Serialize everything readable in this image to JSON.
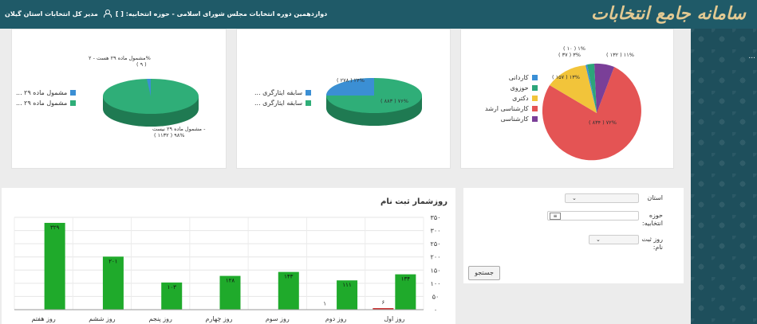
{
  "header": {
    "logo": "سامانه جامع انتخابات",
    "info_text": "دوازدهمین دوره انتخابات مجلس شورای اسلامی - حوزه انتخابیه: [ ]",
    "user_text": "مدیر کل انتخابات استان گیلان",
    "bg_color": "#1f5a68"
  },
  "sidebar": {
    "mark": "..."
  },
  "pie_education": {
    "legend": [
      "کاردانی",
      "حوزوی",
      "دکتری",
      "کارشناسی ارشد",
      "کارشناسی"
    ],
    "labels": {
      "l1": "( ۱۰ ) ۱%",
      "l2": "( ۳۷ ) ۳%",
      "l3": "( ۱۵۷ ) ۱۳%",
      "l4": "( ۱۳۲ ) ۱۱%",
      "l5": "( ۸۳۴ ) ۷۲%"
    }
  },
  "pie_experience": {
    "legend": [
      "سابقه ایثارگری ...",
      "سابقه ایثارگری ..."
    ],
    "labels": {
      "a": "( ۲۷۸ ) ۲۴%",
      "b": "( ۸۸۳ ) ۷۶%"
    }
  },
  "pie_article29": {
    "legend": [
      "مشمول ماده ۲۹ ...",
      "مشمول ماده ۲۹ ..."
    ],
    "label_top_1": "مشمول ماده ۲۹ هست - ۲%",
    "label_top_2": "( ۹ )",
    "label_bottom_1": "مشمول ماده ۲۹ نیست -",
    "label_bottom_2": "( ۱۱۳۲ ) ۹۸%"
  },
  "filters": {
    "province_label": "استان",
    "district_label": "حوزه انتخابیه:",
    "day_label": "روز ثبت نام:",
    "search_button": "جستجو"
  },
  "bar_section": {
    "title": "روزشمار ثبت نام"
  },
  "chart_data": {
    "type": "bar",
    "title": "روزشمار ثبت نام",
    "categories": [
      "روز اول",
      "روز دوم",
      "روز سوم",
      "روز چهارم",
      "روز پنجم",
      "روز ششم",
      "روز هفتم"
    ],
    "series": [
      {
        "values": [
          6,
          1,
          0,
          0,
          0,
          0,
          0
        ],
        "color": "#cc3333"
      },
      {
        "values": [
          134,
          111,
          143,
          128,
          103,
          201,
          329
        ],
        "color": "#1faa2b"
      }
    ],
    "value_labels": [
      [
        "۶",
        "۱",
        "",
        "",
        "",
        "",
        ""
      ],
      [
        "۱۳۴",
        "۱۱۱",
        "۱۴۳",
        "۱۲۸",
        "۱۰۳",
        "۲۰۱",
        "۳۲۹"
      ]
    ],
    "y_ticks": [
      "۰",
      "۵۰",
      "۱۰۰",
      "۱۵۰",
      "۲۰۰",
      "۲۵۰",
      "۳۰۰",
      "۳۵۰"
    ],
    "ylim": [
      0,
      350
    ],
    "grid": true
  }
}
